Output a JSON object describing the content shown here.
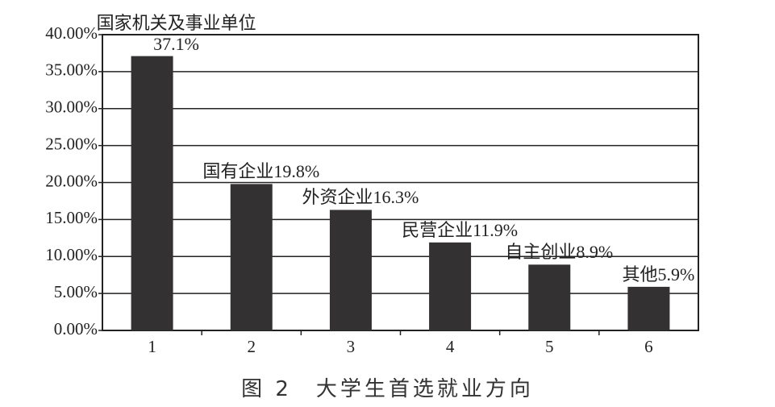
{
  "chart_data": {
    "type": "bar",
    "title": "图 2　大学生首选就业方向",
    "categories": [
      "1",
      "2",
      "3",
      "4",
      "5",
      "6"
    ],
    "values": [
      37.1,
      19.8,
      16.3,
      11.9,
      8.9,
      5.9
    ],
    "value_labels": [
      "国家机关及事业单位37.1%",
      "国有企业19.8%",
      "外资企业16.3%",
      "民营企业11.9%",
      "自主创业8.9%",
      "其他5.9%"
    ],
    "color": "#333132",
    "ylim": [
      0,
      40
    ],
    "yticks": [
      {
        "value": 0,
        "label": "0.00%"
      },
      {
        "value": 5,
        "label": "5.00%"
      },
      {
        "value": 10,
        "label": "10.00%"
      },
      {
        "value": 15,
        "label": "15.00%"
      },
      {
        "value": 20,
        "label": "20.00%"
      },
      {
        "value": 25,
        "label": "25.00%"
      },
      {
        "value": 30,
        "label": "30.00%"
      },
      {
        "value": 35,
        "label": "35.00%"
      },
      {
        "value": 40,
        "label": "40.00%"
      }
    ],
    "grid": true
  }
}
